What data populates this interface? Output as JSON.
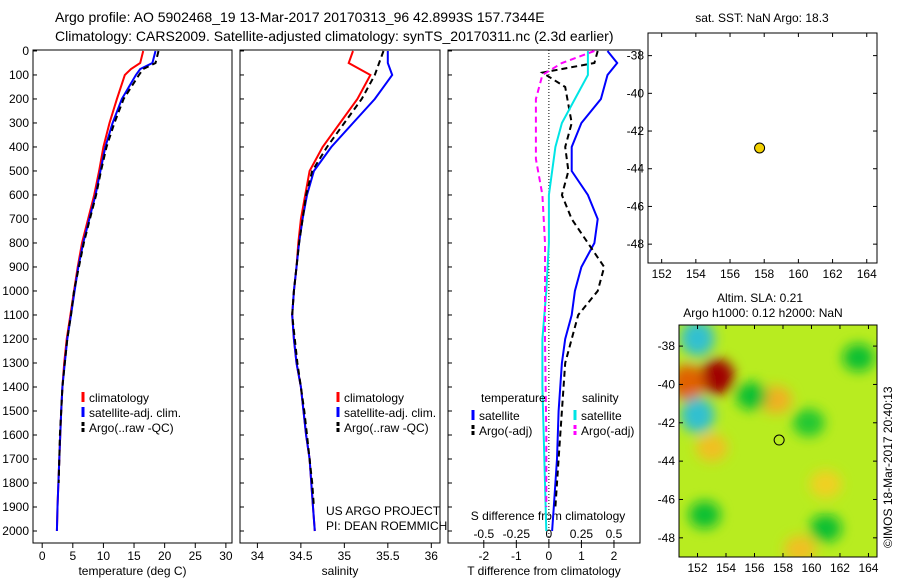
{
  "title_line1": "Argo profile: AO 5902468_19 13-Mar-2017 20170313_96 42.8993S 157.7344E",
  "title_line2": "Climatology: CARS2009. Satellite-adjusted climatology: synTS_20170311.nc (2.3d earlier)",
  "colors": {
    "climatology": "#ff0000",
    "satellite": "#0000ff",
    "argo": "#000000",
    "sal_satellite": "#00e5e5",
    "sal_argo": "#ff00ff",
    "float_marker": "#f2d000"
  },
  "chart_data": [
    {
      "type": "line",
      "name": "temperature-profile",
      "xlabel": "temperature (deg C)",
      "ylabel": "depth",
      "xlim": [
        -1.5,
        31
      ],
      "ylim": [
        2050,
        0
      ],
      "xticks": [
        0,
        5,
        10,
        15,
        20,
        25,
        30
      ],
      "yticks": [
        0,
        100,
        200,
        300,
        400,
        500,
        600,
        700,
        800,
        900,
        1000,
        1100,
        1200,
        1300,
        1400,
        1500,
        1600,
        1700,
        1800,
        1900,
        2000
      ],
      "legend": [
        "climatology",
        "satellite-adj. clim.",
        "Argo(..raw -QC)"
      ],
      "series": [
        {
          "name": "climatology",
          "color": "climatology",
          "style": "solid",
          "depth": [
            0,
            50,
            75,
            100,
            200,
            300,
            400,
            500,
            600,
            700,
            800,
            900,
            1000,
            1100,
            1200,
            1300,
            1400,
            1500,
            1700,
            1900,
            2000
          ],
          "values": [
            16.5,
            16,
            14.5,
            13.5,
            12.2,
            11,
            10,
            9.3,
            8.5,
            7.5,
            6.5,
            5.8,
            5.2,
            4.6,
            4,
            3.6,
            3.3,
            3.1,
            2.8,
            2.5,
            2.4
          ]
        },
        {
          "name": "satellite-adj. clim.",
          "color": "satellite",
          "style": "solid",
          "depth": [
            0,
            50,
            75,
            100,
            200,
            300,
            400,
            500,
            600,
            700,
            800,
            900,
            1000,
            1100,
            1200,
            1300,
            1400,
            1500,
            1700,
            1900,
            2000
          ],
          "values": [
            18.5,
            18,
            16,
            15.3,
            13,
            11.5,
            10.3,
            9.5,
            8.7,
            7.7,
            6.7,
            5.9,
            5.3,
            4.7,
            4.1,
            3.7,
            3.3,
            3.1,
            2.8,
            2.5,
            2.4
          ]
        },
        {
          "name": "Argo(..raw -QC)",
          "color": "argo",
          "style": "dashed",
          "depth": [
            0,
            50,
            75,
            100,
            200,
            300,
            400,
            500,
            600,
            700,
            800,
            900,
            1000,
            1100,
            1200,
            1300,
            1400,
            1500,
            1600,
            1700,
            1800
          ],
          "values": [
            19,
            18.5,
            16.5,
            15.8,
            13.3,
            11.8,
            10.5,
            9.6,
            8.8,
            7.8,
            6.8,
            6,
            5.2,
            4.7,
            4.1,
            3.7,
            3.3,
            3.1,
            2.9,
            2.8,
            2.7
          ]
        }
      ]
    },
    {
      "type": "line",
      "name": "salinity-profile",
      "xlabel": "salinity",
      "ylabel": "depth",
      "xlim": [
        33.8,
        36.1
      ],
      "ylim": [
        2050,
        0
      ],
      "xticks": [
        34,
        34.5,
        35,
        35.5,
        36
      ],
      "legend": [
        "climatology",
        "satellite-adj. clim.",
        "Argo(..raw -QC)"
      ],
      "annotation": [
        "US ARGO PROJECT",
        "PI: DEAN ROEMMICH"
      ],
      "series": [
        {
          "name": "climatology",
          "color": "climatology",
          "style": "solid",
          "depth": [
            0,
            50,
            100,
            200,
            300,
            400,
            500,
            600,
            700,
            800,
            900,
            1000,
            1100,
            1200,
            1300,
            1400,
            1500,
            1600,
            1700,
            1800,
            1900,
            2000
          ],
          "values": [
            35.1,
            35.05,
            35.3,
            35.15,
            34.95,
            34.75,
            34.6,
            34.55,
            34.5,
            34.47,
            34.45,
            34.42,
            34.4,
            34.42,
            34.45,
            34.5,
            34.53,
            34.56,
            34.6,
            34.62,
            34.64,
            34.66
          ]
        },
        {
          "name": "satellite-adj. clim.",
          "color": "satellite",
          "style": "solid",
          "depth": [
            0,
            50,
            100,
            200,
            300,
            400,
            500,
            600,
            700,
            800,
            900,
            1000,
            1100,
            1200,
            1300,
            1400,
            1500,
            1600,
            1700,
            1800,
            1900,
            2000
          ],
          "values": [
            35.5,
            35.5,
            35.55,
            35.35,
            35.1,
            34.85,
            34.65,
            34.57,
            34.52,
            34.48,
            34.45,
            34.42,
            34.4,
            34.42,
            34.45,
            34.5,
            34.53,
            34.56,
            34.6,
            34.62,
            34.64,
            34.66
          ]
        },
        {
          "name": "Argo(..raw -QC)",
          "color": "argo",
          "style": "dashed",
          "depth": [
            0,
            50,
            100,
            200,
            300,
            400,
            500,
            600,
            700,
            800,
            900,
            1000,
            1100,
            1200,
            1300,
            1400,
            1500,
            1600,
            1700,
            1800,
            1900
          ],
          "values": [
            35.45,
            35.4,
            35.35,
            35.2,
            35.0,
            34.8,
            34.63,
            34.56,
            34.52,
            34.48,
            34.45,
            34.42,
            34.4,
            34.43,
            34.46,
            34.5,
            34.54,
            34.57,
            34.6,
            34.63,
            34.65
          ]
        }
      ]
    },
    {
      "type": "line",
      "name": "difference-profile",
      "xlabel": "T difference from climatology",
      "x2label": "S difference from climatology",
      "xlim": [
        -3.1,
        2.8
      ],
      "ylim": [
        2050,
        0
      ],
      "xticks": [
        -2,
        -1,
        0,
        1,
        2
      ],
      "x2ticks": [
        -0.5,
        -0.25,
        0,
        0.25,
        0.5
      ],
      "x2ticklabels": [
        "-0.5",
        "-0.25",
        "0",
        "0.25",
        "0.5"
      ],
      "legend_temperature": {
        "heading": "temperature",
        "items": [
          "satellite",
          "Argo(-adj)"
        ]
      },
      "legend_salinity": {
        "heading": "salinity",
        "items": [
          "satellite",
          "Argo(-adj)"
        ]
      },
      "series": [
        {
          "name": "T satellite",
          "color": "satellite",
          "style": "solid",
          "axis": "T",
          "depth": [
            0,
            50,
            100,
            200,
            300,
            400,
            500,
            600,
            700,
            800,
            900,
            1000,
            1100,
            1200,
            1300,
            1500,
            1700,
            1900,
            2000
          ],
          "values": [
            1.8,
            2.1,
            1.8,
            1.6,
            1.0,
            0.7,
            0.7,
            1.2,
            1.5,
            1.4,
            1.0,
            0.8,
            0.7,
            0.5,
            0.4,
            0.3,
            0.25,
            0.15,
            0.1
          ]
        },
        {
          "name": "T Argo(-adj)",
          "color": "argo",
          "style": "dashed",
          "axis": "T",
          "depth": [
            0,
            50,
            90,
            150,
            300,
            400,
            500,
            600,
            700,
            800,
            900,
            1000,
            1100,
            1200,
            1300,
            1500,
            1700,
            1900
          ],
          "values": [
            1.5,
            1.4,
            -0.2,
            0.5,
            0.7,
            0.5,
            0.6,
            0.4,
            0.7,
            1.2,
            1.7,
            1.5,
            0.9,
            0.7,
            0.5,
            0.4,
            0.3,
            0.2
          ]
        },
        {
          "name": "S satellite",
          "color": "sal_satellite",
          "style": "solid",
          "axis": "S",
          "depth": [
            0,
            100,
            200,
            300,
            400,
            600,
            800,
            1000,
            1200,
            1400,
            1600,
            1800,
            2000
          ],
          "values": [
            0.3,
            0.3,
            0.2,
            0.1,
            0.05,
            0,
            0,
            -0.02,
            -0.05,
            -0.05,
            -0.04,
            -0.03,
            -0.02
          ]
        },
        {
          "name": "S Argo(-adj)",
          "color": "sal_argo",
          "style": "dashed",
          "axis": "S",
          "depth": [
            0,
            50,
            100,
            200,
            300,
            450,
            600,
            800,
            1200,
            1600,
            1900
          ],
          "values": [
            0.35,
            0.1,
            -0.05,
            -0.1,
            -0.1,
            -0.1,
            -0.05,
            -0.03,
            -0.03,
            -0.02,
            -0.02
          ]
        }
      ]
    },
    {
      "type": "scatter",
      "name": "sst-map",
      "title": "sat. SST: NaN Argo: 18.3",
      "xlim": [
        151.2,
        164.6
      ],
      "ylim": [
        -49,
        -36.8
      ],
      "xticks": [
        152,
        154,
        156,
        158,
        160,
        162,
        164
      ],
      "yticks": [
        -38,
        -40,
        -42,
        -44,
        -46,
        -48
      ],
      "points": [
        {
          "lon": 157.73,
          "lat": -42.9
        }
      ]
    },
    {
      "type": "heatmap",
      "name": "sla-map",
      "title_line1": "Altim. SLA: 0.21",
      "title_line2": "Argo h1000: 0.12 h2000: NaN",
      "side_label": "©IMOS 18-Mar-2017 20:40:13",
      "xlim": [
        150.7,
        164.6
      ],
      "ylim": [
        -49,
        -36.9
      ],
      "xticks": [
        152,
        154,
        156,
        158,
        160,
        162,
        164
      ],
      "yticks": [
        -38,
        -40,
        -42,
        -44,
        -46,
        -48
      ],
      "points": [
        {
          "lon": 157.73,
          "lat": -42.9
        }
      ],
      "features": [
        {
          "lon": 153.4,
          "lat": -39.6,
          "level": "high",
          "color": "#a00000"
        },
        {
          "lon": 151.3,
          "lat": -39.9,
          "level": "high",
          "color": "#e06000"
        },
        {
          "lon": 152,
          "lat": -37.6,
          "level": "low",
          "color": "#30c0d0"
        },
        {
          "lon": 152,
          "lat": -41.6,
          "level": "low",
          "color": "#30c0d0"
        },
        {
          "lon": 157.5,
          "lat": -40.8,
          "level": "mid-high",
          "color": "#f0b020"
        },
        {
          "lon": 153,
          "lat": -43.3,
          "level": "mid-high",
          "color": "#f0c020"
        },
        {
          "lon": 159.2,
          "lat": -48.6,
          "level": "mid-high",
          "color": "#f0c020"
        },
        {
          "lon": 161,
          "lat": -45.2,
          "level": "mid-high",
          "color": "#f0d020"
        },
        {
          "lon": 155.8,
          "lat": -40.6,
          "level": "low-mid",
          "color": "#10c030"
        },
        {
          "lon": 163.3,
          "lat": -38.6,
          "level": "low-mid",
          "color": "#10c030"
        },
        {
          "lon": 161,
          "lat": -47.5,
          "level": "low-mid",
          "color": "#10c030"
        },
        {
          "lon": 152.5,
          "lat": -46.8,
          "level": "low-mid",
          "color": "#10c030"
        },
        {
          "lon": 159.8,
          "lat": -42,
          "level": "low-mid",
          "color": "#20c830"
        }
      ]
    }
  ]
}
